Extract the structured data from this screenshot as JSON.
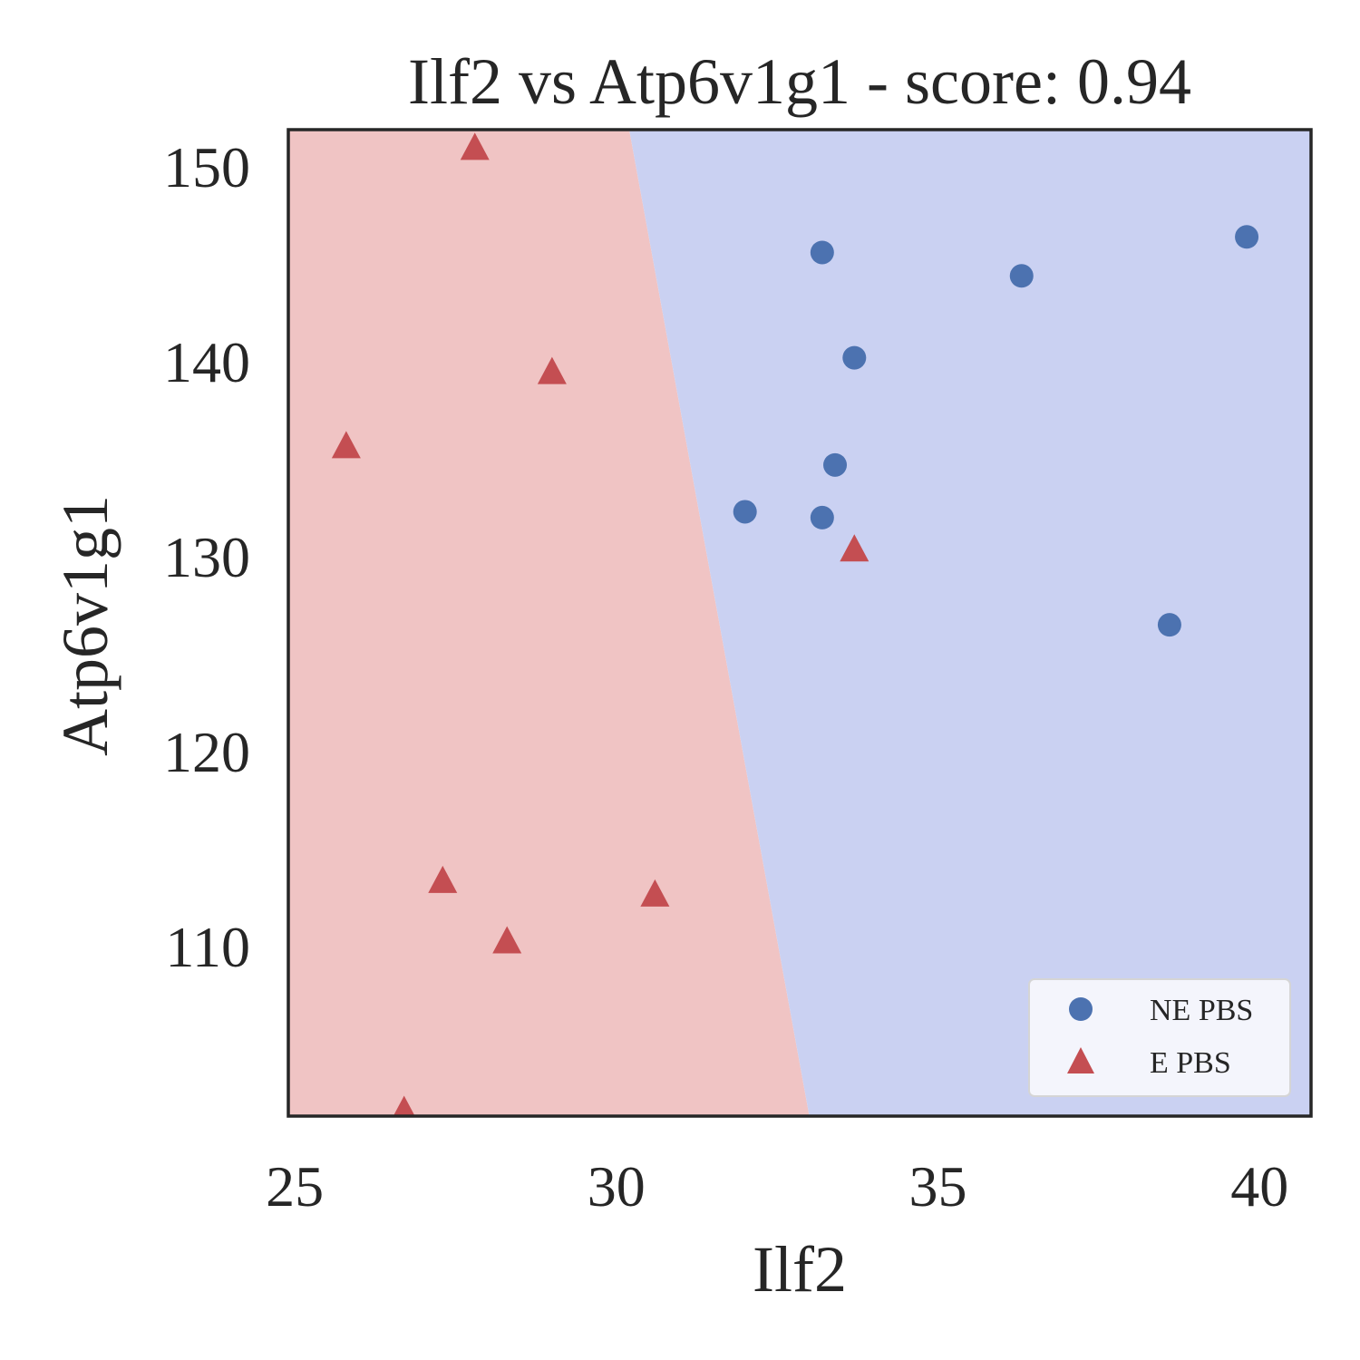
{
  "chart_data": {
    "type": "scatter",
    "title": "Ilf2 vs Atp6v1g1 - score: 0.94",
    "xlabel": "Ilf2",
    "ylabel": "Atp6v1g1",
    "xlim": [
      24.9,
      40.8
    ],
    "ylim": [
      101.3,
      151.9
    ],
    "xticks": [
      25,
      30,
      35,
      40
    ],
    "yticks": [
      110,
      120,
      130,
      140,
      150
    ],
    "grid": false,
    "legend_position": "lower-right",
    "decision_boundary": [
      [
        30.2,
        151.9
      ],
      [
        33.0,
        101.3
      ]
    ],
    "regions": {
      "left": {
        "label": "E PBS",
        "color": "#f0c4c4"
      },
      "right": {
        "label": "NE PBS",
        "color": "#cad1f2"
      }
    },
    "series": [
      {
        "name": "NE PBS",
        "marker": "circle",
        "color": "#4c72b0",
        "points": [
          [
            33.2,
            145.6
          ],
          [
            36.3,
            144.4
          ],
          [
            39.8,
            146.4
          ],
          [
            33.7,
            140.2
          ],
          [
            33.4,
            134.7
          ],
          [
            32.0,
            132.3
          ],
          [
            33.2,
            132.0
          ],
          [
            38.6,
            126.5
          ]
        ]
      },
      {
        "name": "E PBS",
        "marker": "triangle",
        "color": "#c44e52",
        "points": [
          [
            27.8,
            151.0
          ],
          [
            29.0,
            139.5
          ],
          [
            25.8,
            135.7
          ],
          [
            33.7,
            130.4
          ],
          [
            27.3,
            113.4
          ],
          [
            30.6,
            112.7
          ],
          [
            28.3,
            110.3
          ],
          [
            26.7,
            101.6
          ]
        ]
      }
    ]
  }
}
